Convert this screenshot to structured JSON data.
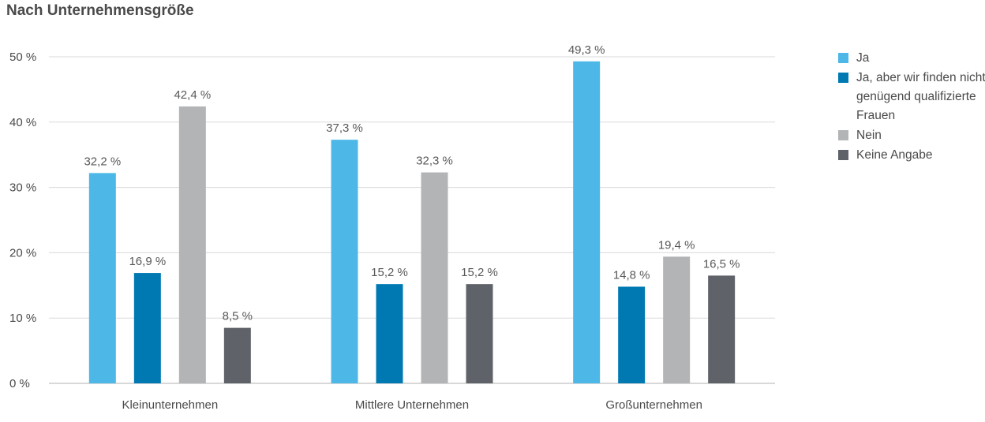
{
  "chart_data": {
    "type": "bar",
    "title": "Nach Unternehmensgröße",
    "categories": [
      "Kleinunternehmen",
      "Mittlere Unternehmen",
      "Großunternehmen"
    ],
    "series": [
      {
        "name": "Ja",
        "color": "#4db8e8",
        "values": [
          32.2,
          37.3,
          49.3
        ],
        "labels": [
          "32,2 %",
          "37,3 %",
          "49,3 %"
        ]
      },
      {
        "name": "Ja, aber wir finden nicht genügend qualifizierte Frauen",
        "color": "#0079b3",
        "values": [
          16.9,
          15.2,
          14.8
        ],
        "labels": [
          "16,9 %",
          "15,2 %",
          "14,8 %"
        ]
      },
      {
        "name": "Nein",
        "color": "#b3b4b6",
        "values": [
          42.4,
          32.3,
          19.4
        ],
        "labels": [
          "42,4 %",
          "32,3 %",
          "19,4 %"
        ]
      },
      {
        "name": "Keine Angabe",
        "color": "#5f6369",
        "values": [
          8.5,
          15.2,
          16.5
        ],
        "labels": [
          "8,5 %",
          "15,2 %",
          "16,5 %"
        ]
      }
    ],
    "ylim": [
      0,
      50
    ],
    "yticks": [
      0,
      10,
      20,
      30,
      40,
      50
    ],
    "ytick_labels": [
      "0 %",
      "10 %",
      "20 %",
      "30 %",
      "40 %",
      "50 %"
    ],
    "grid": true,
    "legend_position": "right"
  }
}
